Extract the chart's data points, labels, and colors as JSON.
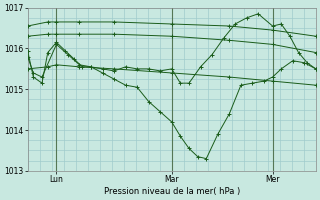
{
  "title": "Pression niveau de la mer( hPa )",
  "bg_color": "#c8e8e0",
  "grid_color": "#a0cccc",
  "line_color": "#1a5c1a",
  "vline_color": "#557755",
  "ylim": [
    1013.0,
    1017.0
  ],
  "yticks": [
    1013,
    1014,
    1015,
    1016,
    1017
  ],
  "day_positions": [
    0.1,
    0.5,
    0.85
  ],
  "day_labels": [
    "Lun",
    "Mar",
    "Mer"
  ],
  "series": [
    {
      "x": [
        0.0,
        0.02,
        0.05,
        0.1,
        0.14,
        0.18,
        0.22,
        0.26,
        0.3,
        0.34,
        0.38,
        0.42,
        0.46,
        0.5,
        0.53,
        0.56,
        0.59,
        0.62,
        0.66,
        0.7,
        0.74,
        0.78,
        0.82,
        0.85,
        0.88,
        0.92,
        0.96,
        1.0
      ],
      "y": [
        1015.8,
        1015.4,
        1015.3,
        1016.1,
        1015.85,
        1015.6,
        1015.55,
        1015.4,
        1015.25,
        1015.1,
        1015.05,
        1014.7,
        1014.45,
        1014.2,
        1013.85,
        1013.55,
        1013.35,
        1013.3,
        1013.9,
        1014.4,
        1015.1,
        1015.15,
        1015.2,
        1015.3,
        1015.5,
        1015.7,
        1015.65,
        1015.5
      ]
    },
    {
      "x": [
        0.0,
        0.07,
        0.1,
        0.18,
        0.3,
        0.5,
        0.7,
        0.85,
        1.0
      ],
      "y": [
        1016.55,
        1016.65,
        1016.65,
        1016.65,
        1016.65,
        1016.6,
        1016.55,
        1016.45,
        1016.3
      ]
    },
    {
      "x": [
        0.0,
        0.07,
        0.1,
        0.18,
        0.3,
        0.5,
        0.7,
        0.85,
        1.0
      ],
      "y": [
        1016.3,
        1016.35,
        1016.35,
        1016.35,
        1016.35,
        1016.3,
        1016.2,
        1016.1,
        1015.9
      ]
    },
    {
      "x": [
        0.0,
        0.07,
        0.1,
        0.18,
        0.3,
        0.5,
        0.7,
        0.85,
        1.0
      ],
      "y": [
        1015.5,
        1015.55,
        1015.6,
        1015.55,
        1015.5,
        1015.4,
        1015.3,
        1015.2,
        1015.1
      ]
    },
    {
      "x": [
        0.0,
        0.02,
        0.05,
        0.07,
        0.1,
        0.13,
        0.16,
        0.19,
        0.22,
        0.26,
        0.3,
        0.34,
        0.38,
        0.42,
        0.46,
        0.5,
        0.53,
        0.56,
        0.6,
        0.64,
        0.68,
        0.72,
        0.76,
        0.8,
        0.85,
        0.88,
        0.91,
        0.94,
        0.97,
        1.0
      ],
      "y": [
        1015.95,
        1015.3,
        1015.15,
        1015.9,
        1016.15,
        1015.95,
        1015.75,
        1015.55,
        1015.55,
        1015.5,
        1015.45,
        1015.55,
        1015.5,
        1015.5,
        1015.45,
        1015.5,
        1015.15,
        1015.15,
        1015.55,
        1015.85,
        1016.25,
        1016.6,
        1016.75,
        1016.85,
        1016.55,
        1016.6,
        1016.3,
        1015.9,
        1015.65,
        1015.5
      ]
    }
  ]
}
